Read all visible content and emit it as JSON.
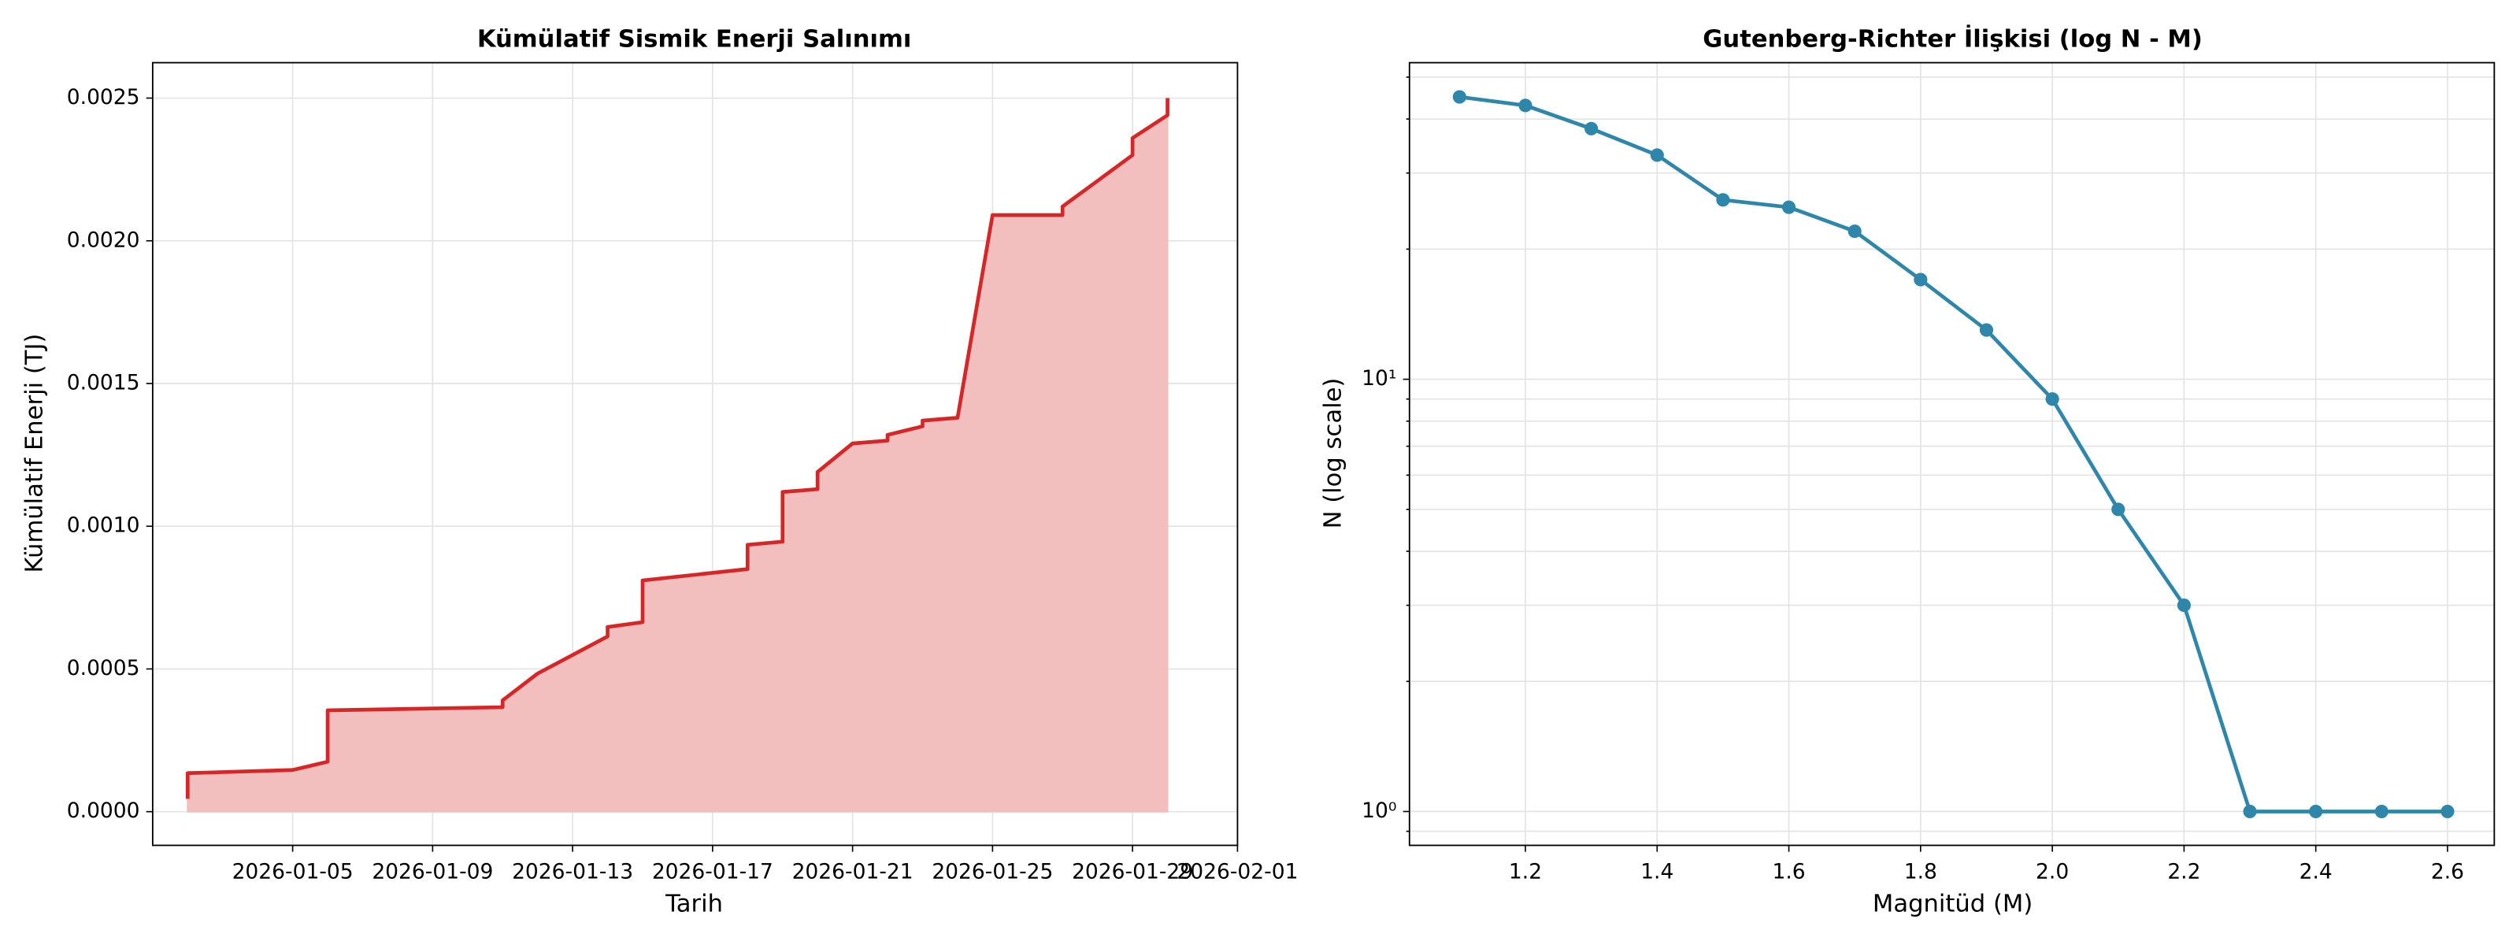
{
  "chart_data": [
    {
      "type": "area",
      "title": "Kümülatif Sismik Enerji Salınımı",
      "xlabel": "Tarih",
      "ylabel": "Kümülatif Enerji (TJ)",
      "x": [
        "2026-01-02",
        "2026-01-02",
        "2026-01-05",
        "2026-01-06",
        "2026-01-06",
        "2026-01-11",
        "2026-01-11",
        "2026-01-12",
        "2026-01-14",
        "2026-01-14",
        "2026-01-14",
        "2026-01-15",
        "2026-01-15",
        "2026-01-15",
        "2026-01-18",
        "2026-01-18",
        "2026-01-19",
        "2026-01-19",
        "2026-01-19",
        "2026-01-20",
        "2026-01-20",
        "2026-01-21",
        "2026-01-22",
        "2026-01-22",
        "2026-01-22",
        "2026-01-23",
        "2026-01-23",
        "2026-01-24",
        "2026-01-25",
        "2026-01-27",
        "2026-01-27",
        "2026-01-29",
        "2026-01-29",
        "2026-01-30",
        "2026-01-30"
      ],
      "series": [
        {
          "name": "Kümülatif Enerji",
          "color": "#d62728",
          "fill": "#f2bebe",
          "values": [
            4.5e-05,
            0.000135,
            0.000146,
            0.000175,
            0.000355,
            0.000366,
            0.00039,
            0.000484,
            0.000614,
            0.00064,
            0.000647,
            0.000664,
            0.000715,
            0.00081,
            0.00085,
            0.000935,
            0.000946,
            0.000997,
            0.00112,
            0.00113,
            0.00119,
            0.00129,
            0.0013,
            0.00131,
            0.00132,
            0.00135,
            0.00137,
            0.00138,
            0.00209,
            0.00209,
            0.00212,
            0.0023,
            0.00236,
            0.00244,
            0.0025
          ]
        }
      ],
      "xlim": [
        "2026-01-01",
        "2026-02-01"
      ],
      "xticks": [
        "2026-01-05",
        "2026-01-09",
        "2026-01-13",
        "2026-01-17",
        "2026-01-21",
        "2026-01-25",
        "2026-01-29",
        "2026-02-01"
      ],
      "ylim": [
        -0.000118,
        0.002624
      ],
      "yticks": [
        {
          "value": 0,
          "label": "0.0000"
        },
        0.0005,
        {
          "value": 0.001,
          "label": "0.0010"
        },
        0.0015,
        {
          "value": 0.002,
          "label": "0.0020"
        },
        0.0025
      ],
      "grid": true
    },
    {
      "type": "line",
      "title": "Gutenberg-Richter İlişkisi (log N - M)",
      "xlabel": "Magnitüd (M)",
      "ylabel": "N (log scale)",
      "x": [
        1.1,
        1.2,
        1.3,
        1.4,
        1.5,
        1.6,
        1.7,
        1.8,
        1.9,
        2.0,
        2.1,
        2.2,
        2.3,
        2.4,
        2.5,
        2.6
      ],
      "series": [
        {
          "name": "N",
          "color": "#2e86ab",
          "values": [
            45,
            43,
            38,
            33,
            26,
            25,
            22,
            17,
            13,
            9,
            5,
            3,
            1,
            1,
            1,
            1
          ]
        }
      ],
      "xlim": [
        1.024,
        2.671
      ],
      "xticks": [
        1.2,
        1.4,
        1.6,
        1.8,
        {
          "value": 2.0,
          "label": "2.0"
        },
        2.2,
        2.4,
        2.6
      ],
      "ylim": [
        0.835,
        54
      ],
      "yticks": [
        {
          "value": 1,
          "label": "10⁰"
        },
        {
          "value": 10,
          "label": "10¹"
        }
      ],
      "log_y": true,
      "grid": true
    }
  ]
}
